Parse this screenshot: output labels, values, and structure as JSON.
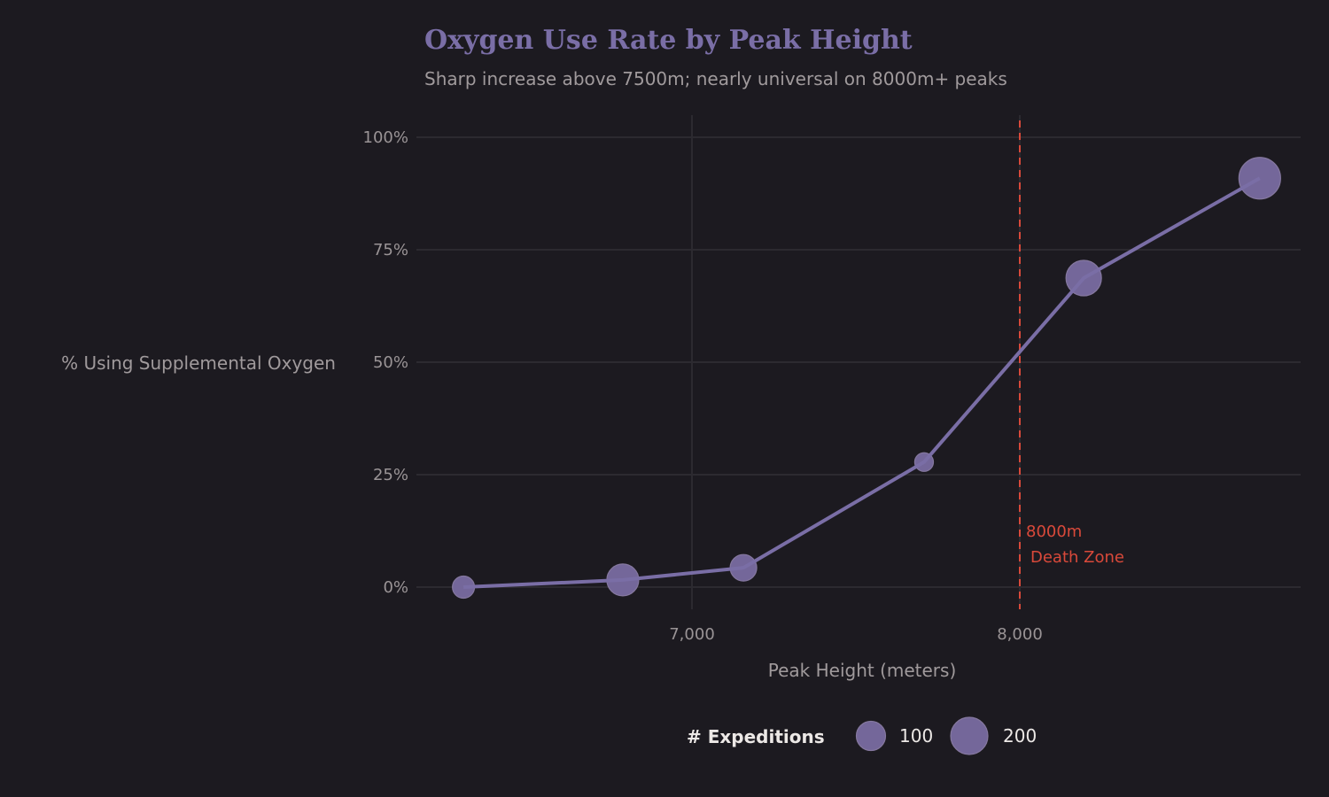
{
  "chart_data": {
    "type": "scatter",
    "title": "Oxygen Use Rate by Peak Height",
    "subtitle": "Sharp increase above 7500m; nearly universal on 8000m+ peaks",
    "xlabel": "Peak Height (meters)",
    "ylabel": "% Using Supplemental Oxygen",
    "xlim": [
      6190,
      8850
    ],
    "ylim": [
      -5,
      105
    ],
    "x_ticks": [
      {
        "value": 7000,
        "label": "7,000"
      },
      {
        "value": 8000,
        "label": "8,000"
      }
    ],
    "y_ticks": [
      {
        "value": 0,
        "label": "0%"
      },
      {
        "value": 25,
        "label": "25%"
      },
      {
        "value": 50,
        "label": "50%"
      },
      {
        "value": 75,
        "label": "75%"
      },
      {
        "value": 100,
        "label": "100%"
      }
    ],
    "grid": true,
    "connect_points": true,
    "points": [
      {
        "x": 6303,
        "y": 0,
        "expeditions": 31
      },
      {
        "x": 6789,
        "y": 1.6,
        "expeditions": 131
      },
      {
        "x": 7157,
        "y": 4.3,
        "expeditions": 72
      },
      {
        "x": 7708,
        "y": 27.8,
        "expeditions": 5
      },
      {
        "x": 8195,
        "y": 68.7,
        "expeditions": 176
      },
      {
        "x": 8732,
        "y": 90.9,
        "expeditions": 266
      }
    ],
    "reference_line": {
      "x": 8000,
      "label_line1": "8000m",
      "label_line2": "Death Zone",
      "color": "#d9493a"
    },
    "legend": {
      "title": "# Expeditions",
      "position": "bottom",
      "entries": [
        {
          "value": 100,
          "label": "100"
        },
        {
          "value": 200,
          "label": "200"
        }
      ]
    },
    "colors": {
      "background": "#1c1a20",
      "series": "#7a6ea6",
      "point_fill": "#74679a",
      "grid": "#2c2a30"
    }
  }
}
